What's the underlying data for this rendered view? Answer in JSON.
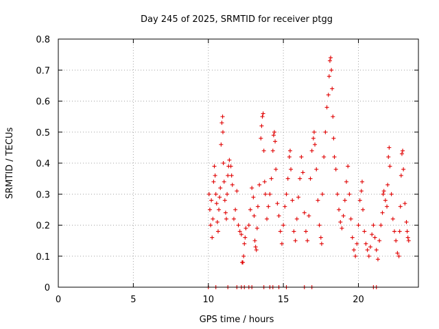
{
  "chart_data": {
    "type": "scatter",
    "title": "Day 245 of 2025, SRMTID for receiver ptgg",
    "xlabel": "GPS time / hours",
    "ylabel": "SRMTID / TECUs",
    "xlim": [
      0,
      24
    ],
    "ylim": [
      0,
      0.8
    ],
    "xticks": [
      0,
      5,
      10,
      15,
      20
    ],
    "yticks": [
      0,
      0.1,
      0.2,
      0.3,
      0.4,
      0.5,
      0.6,
      0.7,
      0.8
    ],
    "ytick_labels": [
      "0",
      "0.1",
      "0.2",
      "0.3",
      "0.4",
      "0.5",
      "0.6",
      "0.7",
      "0.8"
    ],
    "grid": true,
    "marker": "+",
    "color": "#e00000",
    "series": [
      {
        "name": "ptgg",
        "points": [
          [
            10.05,
            0.3
          ],
          [
            10.1,
            0.25
          ],
          [
            10.15,
            0.2
          ],
          [
            10.2,
            0.28
          ],
          [
            10.25,
            0.16
          ],
          [
            10.3,
            0.22
          ],
          [
            10.35,
            0.34
          ],
          [
            10.4,
            0.39
          ],
          [
            10.45,
            0.36
          ],
          [
            10.5,
            0.3
          ],
          [
            10.55,
            0.27
          ],
          [
            10.6,
            0.21
          ],
          [
            10.65,
            0.18
          ],
          [
            10.7,
            0.25
          ],
          [
            10.75,
            0.29
          ],
          [
            10.8,
            0.32
          ],
          [
            10.85,
            0.46
          ],
          [
            10.9,
            0.53
          ],
          [
            10.95,
            0.55
          ],
          [
            10.97,
            0.5
          ],
          [
            11.0,
            0.4
          ],
          [
            11.05,
            0.34
          ],
          [
            11.1,
            0.28
          ],
          [
            11.15,
            0.24
          ],
          [
            11.2,
            0.22
          ],
          [
            11.25,
            0.3
          ],
          [
            11.3,
            0.36
          ],
          [
            11.35,
            0.39
          ],
          [
            11.4,
            0.41
          ],
          [
            11.5,
            0.39
          ],
          [
            11.55,
            0.36
          ],
          [
            11.6,
            0.33
          ],
          [
            11.7,
            0.22
          ],
          [
            11.8,
            0.25
          ],
          [
            11.9,
            0.31
          ],
          [
            12.0,
            0.2
          ],
          [
            12.1,
            0.18
          ],
          [
            12.2,
            0.17
          ],
          [
            12.25,
            0.08
          ],
          [
            12.3,
            0.08
          ],
          [
            12.35,
            0.1
          ],
          [
            12.4,
            0.14
          ],
          [
            12.45,
            0.16
          ],
          [
            12.5,
            0.19
          ],
          [
            12.7,
            0.2
          ],
          [
            12.8,
            0.25
          ],
          [
            12.9,
            0.32
          ],
          [
            13.0,
            0.29
          ],
          [
            13.05,
            0.23
          ],
          [
            13.1,
            0.15
          ],
          [
            13.15,
            0.13
          ],
          [
            13.2,
            0.12
          ],
          [
            13.25,
            0.19
          ],
          [
            13.3,
            0.26
          ],
          [
            13.4,
            0.33
          ],
          [
            13.5,
            0.48
          ],
          [
            13.55,
            0.52
          ],
          [
            13.6,
            0.55
          ],
          [
            13.65,
            0.56
          ],
          [
            13.7,
            0.44
          ],
          [
            13.75,
            0.34
          ],
          [
            13.8,
            0.3
          ],
          [
            13.9,
            0.22
          ],
          [
            14.0,
            0.26
          ],
          [
            14.1,
            0.3
          ],
          [
            14.2,
            0.35
          ],
          [
            14.3,
            0.44
          ],
          [
            14.35,
            0.49
          ],
          [
            14.4,
            0.5
          ],
          [
            14.45,
            0.47
          ],
          [
            14.5,
            0.38
          ],
          [
            14.6,
            0.27
          ],
          [
            14.7,
            0.23
          ],
          [
            14.8,
            0.18
          ],
          [
            14.9,
            0.14
          ],
          [
            15.0,
            0.2
          ],
          [
            15.1,
            0.26
          ],
          [
            15.2,
            0.3
          ],
          [
            15.3,
            0.35
          ],
          [
            15.4,
            0.42
          ],
          [
            15.45,
            0.44
          ],
          [
            15.5,
            0.38
          ],
          [
            15.6,
            0.28
          ],
          [
            15.7,
            0.18
          ],
          [
            15.8,
            0.15
          ],
          [
            15.9,
            0.22
          ],
          [
            16.0,
            0.29
          ],
          [
            16.1,
            0.35
          ],
          [
            16.2,
            0.42
          ],
          [
            16.3,
            0.37
          ],
          [
            16.4,
            0.24
          ],
          [
            16.5,
            0.18
          ],
          [
            16.6,
            0.15
          ],
          [
            16.7,
            0.23
          ],
          [
            16.8,
            0.35
          ],
          [
            16.9,
            0.44
          ],
          [
            17.0,
            0.48
          ],
          [
            17.05,
            0.5
          ],
          [
            17.1,
            0.46
          ],
          [
            17.2,
            0.38
          ],
          [
            17.3,
            0.28
          ],
          [
            17.4,
            0.2
          ],
          [
            17.5,
            0.16
          ],
          [
            17.55,
            0.14
          ],
          [
            17.6,
            0.3
          ],
          [
            17.7,
            0.42
          ],
          [
            17.8,
            0.5
          ],
          [
            17.9,
            0.58
          ],
          [
            18.0,
            0.62
          ],
          [
            18.05,
            0.68
          ],
          [
            18.1,
            0.73
          ],
          [
            18.15,
            0.74
          ],
          [
            18.2,
            0.7
          ],
          [
            18.25,
            0.64
          ],
          [
            18.3,
            0.55
          ],
          [
            18.35,
            0.48
          ],
          [
            18.4,
            0.42
          ],
          [
            18.5,
            0.38
          ],
          [
            18.6,
            0.3
          ],
          [
            18.7,
            0.25
          ],
          [
            18.8,
            0.21
          ],
          [
            18.9,
            0.19
          ],
          [
            19.0,
            0.23
          ],
          [
            19.1,
            0.28
          ],
          [
            19.2,
            0.34
          ],
          [
            19.3,
            0.39
          ],
          [
            19.4,
            0.3
          ],
          [
            19.5,
            0.22
          ],
          [
            19.6,
            0.16
          ],
          [
            19.7,
            0.12
          ],
          [
            19.8,
            0.1
          ],
          [
            19.9,
            0.14
          ],
          [
            20.0,
            0.2
          ],
          [
            20.1,
            0.28
          ],
          [
            20.2,
            0.31
          ],
          [
            20.25,
            0.34
          ],
          [
            20.3,
            0.25
          ],
          [
            20.4,
            0.18
          ],
          [
            20.5,
            0.14
          ],
          [
            20.6,
            0.12
          ],
          [
            20.7,
            0.1
          ],
          [
            20.8,
            0.13
          ],
          [
            20.9,
            0.17
          ],
          [
            21.0,
            0.2
          ],
          [
            21.1,
            0.16
          ],
          [
            21.2,
            0.12
          ],
          [
            21.3,
            0.09
          ],
          [
            21.4,
            0.15
          ],
          [
            21.5,
            0.2
          ],
          [
            21.6,
            0.24
          ],
          [
            21.65,
            0.3
          ],
          [
            21.7,
            0.31
          ],
          [
            21.8,
            0.28
          ],
          [
            21.9,
            0.26
          ],
          [
            21.95,
            0.33
          ],
          [
            22.0,
            0.42
          ],
          [
            22.05,
            0.45
          ],
          [
            22.1,
            0.39
          ],
          [
            22.2,
            0.3
          ],
          [
            22.3,
            0.22
          ],
          [
            22.4,
            0.18
          ],
          [
            22.5,
            0.15
          ],
          [
            22.6,
            0.11
          ],
          [
            22.7,
            0.1
          ],
          [
            22.75,
            0.18
          ],
          [
            22.8,
            0.26
          ],
          [
            22.85,
            0.36
          ],
          [
            22.9,
            0.43
          ],
          [
            22.95,
            0.44
          ],
          [
            23.0,
            0.38
          ],
          [
            23.1,
            0.27
          ],
          [
            23.2,
            0.21
          ],
          [
            23.25,
            0.18
          ],
          [
            23.3,
            0.16
          ],
          [
            23.35,
            0.15
          ],
          [
            10.0,
            0.0
          ],
          [
            10.5,
            0.0
          ],
          [
            11.3,
            0.0
          ],
          [
            11.9,
            0.0
          ],
          [
            12.2,
            0.0
          ],
          [
            12.4,
            0.0
          ],
          [
            12.7,
            0.0
          ],
          [
            12.9,
            0.0
          ],
          [
            13.7,
            0.0
          ],
          [
            14.1,
            0.0
          ],
          [
            14.3,
            0.0
          ],
          [
            14.7,
            0.0
          ],
          [
            15.2,
            0.0
          ],
          [
            16.4,
            0.0
          ],
          [
            16.9,
            0.0
          ],
          [
            21.0,
            0.0
          ],
          [
            21.2,
            0.0
          ]
        ]
      }
    ]
  }
}
